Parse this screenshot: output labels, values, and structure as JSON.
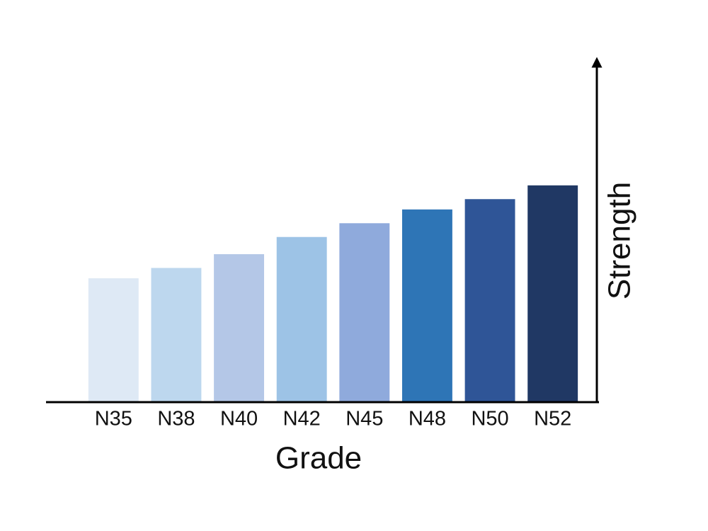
{
  "chart_data": {
    "type": "bar",
    "x_label": "Grade",
    "y_label": "Strength",
    "categories": [
      "N35",
      "N38",
      "N40",
      "N42",
      "N45",
      "N48",
      "N50",
      "N52"
    ],
    "values": [
      36,
      39,
      43,
      48,
      52,
      56,
      59,
      63
    ],
    "colors": [
      "#dee9f5",
      "#bdd7ee",
      "#b4c7e7",
      "#9dc3e6",
      "#8faadc",
      "#2e75b6",
      "#2f5597",
      "#203864"
    ],
    "ylim": [
      0,
      100
    ]
  }
}
